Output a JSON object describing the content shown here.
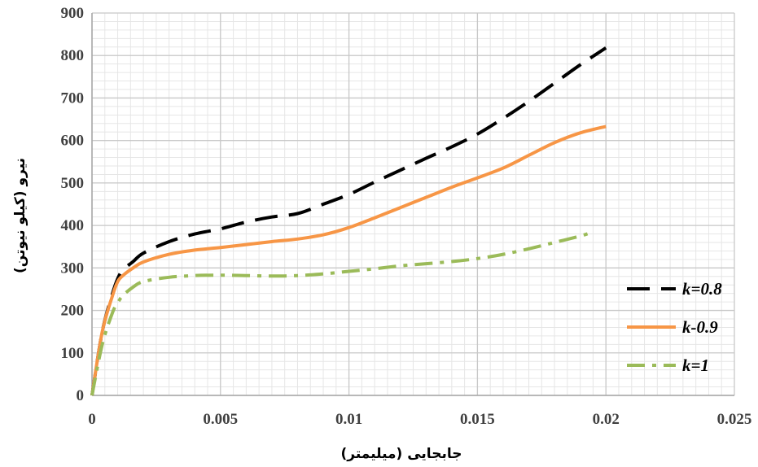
{
  "chart_data": {
    "type": "line",
    "xlabel": "جابجایی (میلیمتر)",
    "ylabel": "نیرو (کیلو نیوتن)",
    "xlim": [
      0,
      0.025
    ],
    "ylim": [
      0,
      900
    ],
    "x_ticks": [
      "0",
      "0.005",
      "0.01",
      "0.015",
      "0.02",
      "0.025"
    ],
    "y_ticks": [
      "0",
      "100",
      "200",
      "300",
      "400",
      "500",
      "600",
      "700",
      "800",
      "900"
    ],
    "grid": true,
    "legend_position": "right",
    "series": [
      {
        "name": "k=0.8",
        "color": "#000000",
        "dash": "long-dash",
        "x": [
          0,
          0.0004,
          0.0008,
          0.001,
          0.0012,
          0.0016,
          0.002,
          0.003,
          0.004,
          0.005,
          0.006,
          0.007,
          0.008,
          0.009,
          0.01,
          0.011,
          0.012,
          0.013,
          0.014,
          0.015,
          0.016,
          0.017,
          0.018,
          0.019,
          0.02
        ],
        "y": [
          0,
          150,
          240,
          275,
          295,
          315,
          335,
          362,
          380,
          392,
          408,
          420,
          428,
          450,
          473,
          502,
          530,
          558,
          585,
          615,
          652,
          692,
          735,
          778,
          818
        ]
      },
      {
        "name": "k-0.9",
        "color": "#f79646",
        "dash": "solid",
        "x": [
          0,
          0.0004,
          0.0008,
          0.001,
          0.0012,
          0.0016,
          0.002,
          0.003,
          0.004,
          0.005,
          0.006,
          0.007,
          0.008,
          0.009,
          0.01,
          0.011,
          0.012,
          0.013,
          0.014,
          0.015,
          0.016,
          0.017,
          0.018,
          0.019,
          0.02
        ],
        "y": [
          0,
          150,
          235,
          268,
          282,
          300,
          314,
          332,
          342,
          348,
          355,
          362,
          368,
          378,
          395,
          418,
          442,
          466,
          490,
          512,
          535,
          565,
          595,
          618,
          633
        ]
      },
      {
        "name": "k=1",
        "color": "#9bbb59",
        "dash": "dash-dot",
        "x": [
          0,
          0.0004,
          0.0008,
          0.001,
          0.0012,
          0.0016,
          0.002,
          0.003,
          0.004,
          0.005,
          0.006,
          0.007,
          0.008,
          0.009,
          0.01,
          0.011,
          0.012,
          0.013,
          0.014,
          0.015,
          0.016,
          0.017,
          0.018,
          0.019,
          0.0195
        ],
        "y": [
          0,
          120,
          195,
          218,
          235,
          255,
          268,
          278,
          282,
          283,
          282,
          281,
          282,
          286,
          292,
          298,
          305,
          310,
          315,
          322,
          332,
          345,
          360,
          375,
          385
        ]
      }
    ]
  }
}
